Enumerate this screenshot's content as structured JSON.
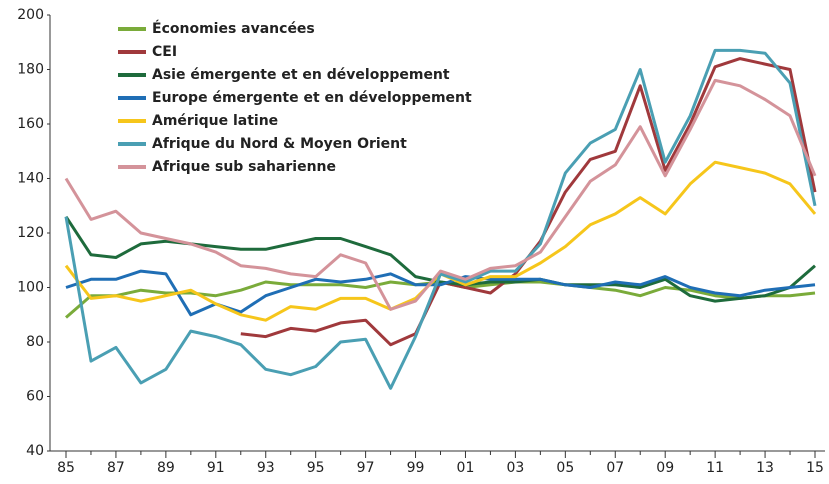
{
  "chart_data": {
    "type": "line",
    "categories": [
      "85",
      null,
      "87",
      null,
      "89",
      null,
      "91",
      null,
      "93",
      null,
      "95",
      null,
      "97",
      null,
      "99",
      null,
      "01",
      null,
      "03",
      null,
      "05",
      null,
      "07",
      null,
      "09",
      null,
      "11",
      null,
      "13",
      null,
      "15"
    ],
    "ylim": [
      40,
      200
    ],
    "yticks": [
      40,
      60,
      80,
      100,
      120,
      140,
      160,
      180,
      200
    ],
    "grid": false,
    "series": [
      {
        "name": "Économies avancées",
        "color": "#7aab3a",
        "values": [
          89,
          97,
          97,
          99,
          98,
          98,
          97,
          99,
          102,
          101,
          101,
          101,
          100,
          102,
          101,
          102,
          100,
          101,
          102,
          102,
          101,
          100,
          99,
          97,
          100,
          99,
          97,
          96,
          97,
          97,
          98
        ]
      },
      {
        "name": "CEI",
        "color": "#a0393c",
        "values": [
          null,
          null,
          null,
          null,
          null,
          null,
          null,
          83,
          82,
          85,
          84,
          87,
          88,
          79,
          83,
          102,
          100,
          98,
          105,
          117,
          135,
          147,
          150,
          174,
          143,
          160,
          181,
          184,
          182,
          180,
          135
        ]
      },
      {
        "name": "Asie émergente et en développement",
        "color": "#1e6b3c",
        "values": [
          126,
          112,
          111,
          116,
          117,
          116,
          115,
          114,
          114,
          116,
          118,
          118,
          115,
          112,
          104,
          102,
          101,
          102,
          102,
          103,
          101,
          101,
          101,
          100,
          103,
          97,
          95,
          96,
          97,
          100,
          108
        ]
      },
      {
        "name": "Europe émergente et en développement",
        "color": "#1f6eb5",
        "values": [
          100,
          103,
          103,
          106,
          105,
          90,
          94,
          91,
          97,
          100,
          103,
          102,
          103,
          105,
          101,
          101,
          104,
          103,
          103,
          103,
          101,
          100,
          102,
          101,
          104,
          100,
          98,
          97,
          99,
          100,
          101
        ]
      },
      {
        "name": "Amérique latine",
        "color": "#f6c61b",
        "values": [
          108,
          96,
          97,
          95,
          97,
          99,
          94,
          90,
          88,
          93,
          92,
          96,
          96,
          92,
          96,
          105,
          101,
          104,
          104,
          109,
          115,
          123,
          127,
          133,
          127,
          138,
          146,
          144,
          142,
          138,
          127
        ]
      },
      {
        "name": "Afrique du Nord & Moyen Orient",
        "color": "#4a9fb3",
        "values": [
          126,
          73,
          78,
          65,
          70,
          84,
          82,
          79,
          70,
          68,
          71,
          80,
          81,
          63,
          82,
          105,
          102,
          106,
          106,
          116,
          142,
          153,
          158,
          180,
          146,
          163,
          187,
          187,
          186,
          175,
          130
        ]
      },
      {
        "name": "Afrique sub saharienne",
        "color": "#d4939a",
        "values": [
          140,
          125,
          128,
          120,
          118,
          116,
          113,
          108,
          107,
          105,
          104,
          112,
          109,
          92,
          95,
          106,
          103,
          107,
          108,
          113,
          126,
          139,
          145,
          159,
          141,
          158,
          176,
          174,
          169,
          163,
          141
        ]
      }
    ]
  }
}
